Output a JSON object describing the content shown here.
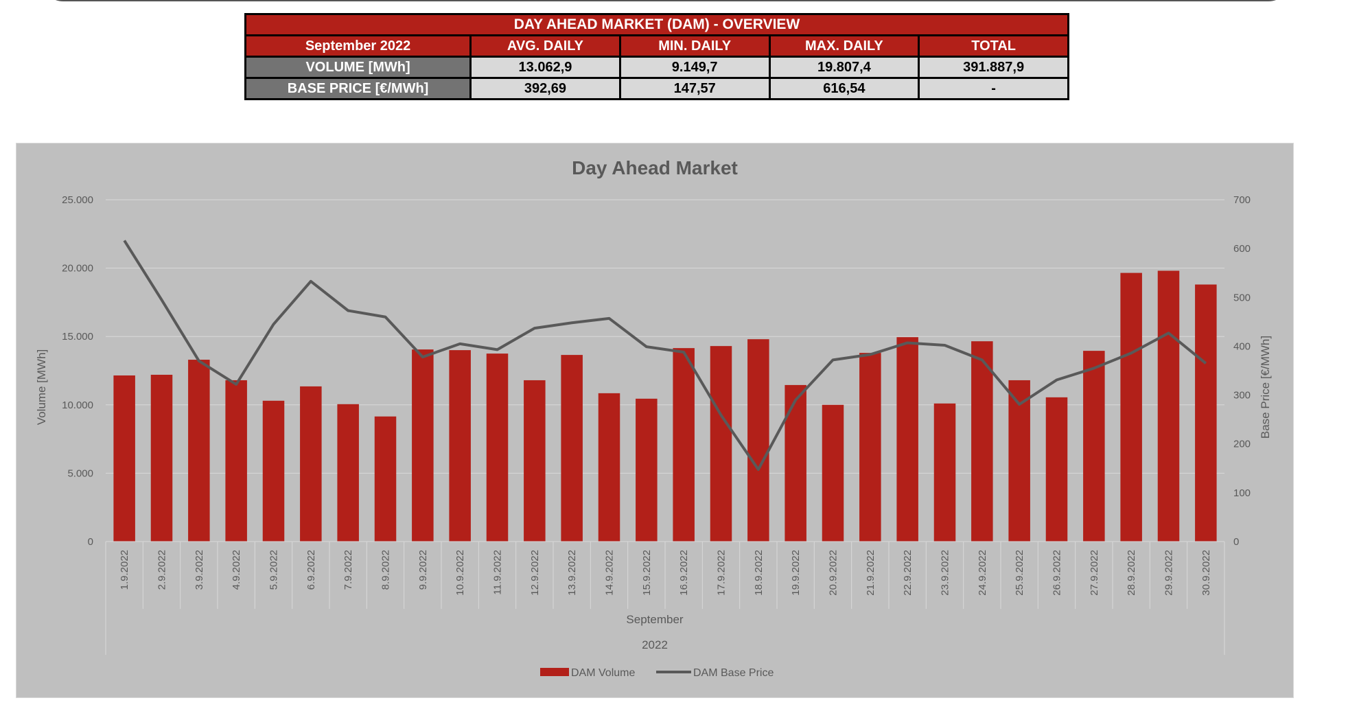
{
  "overview": {
    "title": "DAY AHEAD MARKET (DAM) - OVERVIEW",
    "period": "September 2022",
    "columns": [
      "AVG. DAILY",
      "MIN. DAILY",
      "MAX. DAILY",
      "TOTAL"
    ],
    "rows": [
      {
        "label": "VOLUME [MWh]",
        "values": [
          "13.062,9",
          "9.149,7",
          "19.807,4",
          "391.887,9"
        ]
      },
      {
        "label": "BASE PRICE [€/MWh]",
        "values": [
          "392,69",
          "147,57",
          "616,54",
          "-"
        ]
      }
    ]
  },
  "colors": {
    "bar": "#b22019",
    "line": "#595959",
    "chart_bg": "#bfbfbf"
  },
  "chart_data": {
    "type": "bar+line",
    "title": "Day Ahead Market",
    "ylabel": "Volume [MWh]",
    "y2label": "Base Price [€/MWh]",
    "xlabel": "September",
    "xlabel2": "2022",
    "ylim": [
      0,
      25000
    ],
    "y2lim": [
      0,
      700
    ],
    "yticks": [
      "0",
      "5.000",
      "10.000",
      "15.000",
      "20.000",
      "25.000"
    ],
    "y2ticks": [
      "0",
      "100",
      "200",
      "300",
      "400",
      "500",
      "600",
      "700"
    ],
    "grid": true,
    "legend_position": "bottom",
    "categories": [
      "1.9.2022",
      "2.9.2022",
      "3.9.2022",
      "4.9.2022",
      "5.9.2022",
      "6.9.2022",
      "7.9.2022",
      "8.9.2022",
      "9.9.2022",
      "10.9.2022",
      "11.9.2022",
      "12.9.2022",
      "13.9.2022",
      "14.9.2022",
      "15.9.2022",
      "16.9.2022",
      "17.9.2022",
      "18.9.2022",
      "19.9.2022",
      "20.9.2022",
      "21.9.2022",
      "22.9.2022",
      "23.9.2022",
      "24.9.2022",
      "25.9.2022",
      "26.9.2022",
      "27.9.2022",
      "28.9.2022",
      "29.9.2022",
      "30.9.2022"
    ],
    "series": [
      {
        "name": "DAM Volume",
        "type": "bar",
        "axis": "left",
        "values": [
          12150,
          12200,
          13300,
          11800,
          10300,
          11350,
          10050,
          9150,
          14050,
          14000,
          13750,
          11800,
          13650,
          10850,
          10450,
          14150,
          14300,
          14800,
          11450,
          10000,
          13800,
          14950,
          10100,
          14650,
          11800,
          10550,
          13950,
          19650,
          19807,
          18800
        ]
      },
      {
        "name": "DAM Base Price",
        "type": "line",
        "axis": "right",
        "values": [
          616.5,
          495,
          370,
          322,
          445,
          533,
          473,
          460,
          378,
          405,
          393,
          437,
          448,
          457,
          399,
          388,
          259,
          147.6,
          290,
          372,
          383,
          407,
          402,
          372,
          281,
          331,
          355,
          386,
          427,
          365
        ]
      }
    ]
  }
}
